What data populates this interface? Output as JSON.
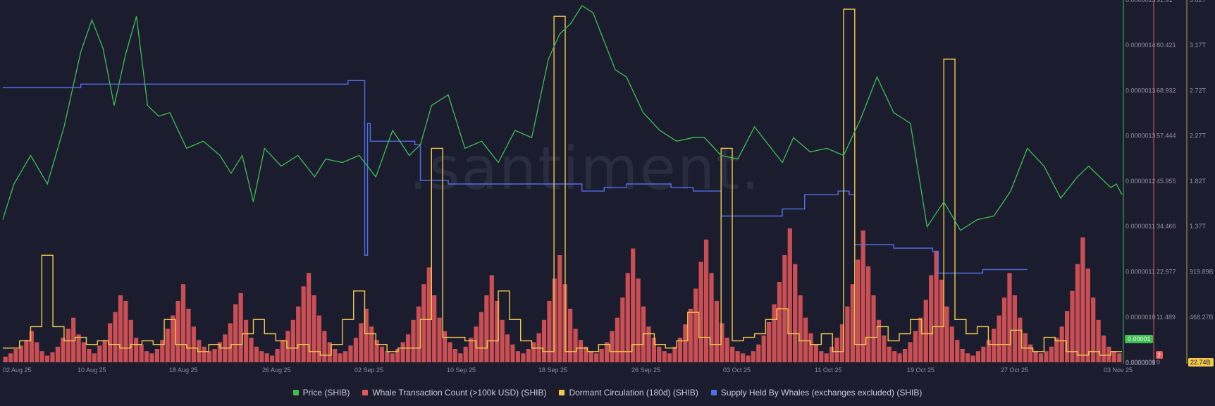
{
  "chart_data": {
    "type": "line",
    "watermark": ".santiment.",
    "x_ticks": [
      "02 Aug 25",
      "10 Aug 25",
      "18 Aug 25",
      "26 Aug 25",
      "02 Sep 25",
      "10 Sep 25",
      "18 Sep 25",
      "26 Sep 25",
      "03 Oct 25",
      "11 Oct 25",
      "19 Oct 25",
      "27 Oct 25",
      "03 Nov 25"
    ],
    "axes": {
      "price": {
        "ticks": [
          "0.0000014",
          "0.0000013",
          "0.0000013",
          "0.0000012",
          "0.0000011",
          "0.0000011",
          "0.0000010",
          "0.0000009"
        ],
        "top_cut": "0.0000015",
        "color": "#3bbf4f"
      },
      "whale_count": {
        "ticks": [
          "80.421",
          "68.932",
          "57.444",
          "45.955",
          "34.466",
          "22.977",
          "11.489",
          "0"
        ],
        "top_cut": "91.91",
        "color": "#e8585a"
      },
      "supply": {
        "ticks": [
          "3.17T",
          "2.72T",
          "2.27T",
          "1.82T",
          "1.37T",
          "919.89B",
          "468.27B"
        ],
        "top_cut": "3.62T",
        "color": "#c9a23a"
      }
    },
    "badges": {
      "price_current": "0.00001",
      "whale_current": "2",
      "dormant_current": "22.74B"
    },
    "series": [
      {
        "name": "Price (SHIB)",
        "color": "#3bbf4f",
        "unit": "price"
      },
      {
        "name": "Whale Transaction Count (>100k USD) (SHIB)",
        "color": "#e8585a",
        "unit": "count"
      },
      {
        "name": "Dormant Circulation (180d) (SHIB)",
        "color": "#f3c94a",
        "unit": "tokens"
      },
      {
        "name": "Supply Held By Whales (exchanges excluded) (SHIB)",
        "color": "#4f6fe8",
        "unit": "tokens"
      }
    ],
    "price_points": [
      [
        0,
        0.4
      ],
      [
        2,
        0.5
      ],
      [
        5,
        0.58
      ],
      [
        8,
        0.5
      ],
      [
        11,
        0.66
      ],
      [
        14,
        0.87
      ],
      [
        16,
        0.96
      ],
      [
        18,
        0.88
      ],
      [
        20,
        0.72
      ],
      [
        22,
        0.86
      ],
      [
        24,
        0.97
      ],
      [
        26,
        0.72
      ],
      [
        28,
        0.69
      ],
      [
        30,
        0.7
      ],
      [
        33,
        0.6
      ],
      [
        36,
        0.62
      ],
      [
        39,
        0.58
      ],
      [
        41,
        0.53
      ],
      [
        43,
        0.58
      ],
      [
        45,
        0.45
      ],
      [
        47,
        0.6
      ],
      [
        50,
        0.55
      ],
      [
        53,
        0.58
      ],
      [
        56,
        0.52
      ],
      [
        58,
        0.57
      ],
      [
        61,
        0.56
      ],
      [
        64,
        0.58
      ],
      [
        67,
        0.52
      ],
      [
        70,
        0.65
      ],
      [
        73,
        0.58
      ],
      [
        75,
        0.61
      ],
      [
        77,
        0.72
      ],
      [
        80,
        0.75
      ],
      [
        83,
        0.6
      ],
      [
        86,
        0.62
      ],
      [
        89,
        0.56
      ],
      [
        92,
        0.65
      ],
      [
        95,
        0.63
      ],
      [
        98,
        0.85
      ],
      [
        100,
        0.92
      ],
      [
        102,
        0.95
      ],
      [
        104,
        1.0
      ],
      [
        106,
        0.98
      ],
      [
        108,
        0.9
      ],
      [
        110,
        0.82
      ],
      [
        112,
        0.8
      ],
      [
        115,
        0.7
      ],
      [
        118,
        0.65
      ],
      [
        121,
        0.62
      ],
      [
        124,
        0.63
      ],
      [
        126,
        0.63
      ],
      [
        129,
        0.58
      ],
      [
        132,
        0.57
      ],
      [
        135,
        0.66
      ],
      [
        138,
        0.6
      ],
      [
        140,
        0.56
      ],
      [
        142,
        0.63
      ],
      [
        145,
        0.59
      ],
      [
        148,
        0.6
      ],
      [
        151,
        0.58
      ],
      [
        154,
        0.68
      ],
      [
        157,
        0.8
      ],
      [
        160,
        0.7
      ],
      [
        163,
        0.67
      ],
      [
        166,
        0.38
      ],
      [
        169,
        0.45
      ],
      [
        172,
        0.37
      ],
      [
        175,
        0.4
      ],
      [
        178,
        0.41
      ],
      [
        181,
        0.48
      ],
      [
        184,
        0.6
      ],
      [
        187,
        0.55
      ],
      [
        190,
        0.46
      ],
      [
        193,
        0.52
      ],
      [
        195,
        0.55
      ],
      [
        197,
        0.52
      ],
      [
        199,
        0.49
      ],
      [
        200,
        0.5
      ],
      [
        201,
        0.47
      ]
    ],
    "dormant_points": [
      [
        0,
        0.04
      ],
      [
        3,
        0.06
      ],
      [
        5,
        0.1
      ],
      [
        7,
        0.3
      ],
      [
        9,
        0.1
      ],
      [
        11,
        0.06
      ],
      [
        13,
        0.07
      ],
      [
        15,
        0.05
      ],
      [
        17,
        0.06
      ],
      [
        19,
        0.05
      ],
      [
        21,
        0.04
      ],
      [
        23,
        0.05
      ],
      [
        25,
        0.06
      ],
      [
        27,
        0.05
      ],
      [
        29,
        0.12
      ],
      [
        31,
        0.05
      ],
      [
        33,
        0.04
      ],
      [
        35,
        0.03
      ],
      [
        37,
        0.05
      ],
      [
        39,
        0.04
      ],
      [
        41,
        0.05
      ],
      [
        43,
        0.08
      ],
      [
        45,
        0.12
      ],
      [
        47,
        0.08
      ],
      [
        49,
        0.06
      ],
      [
        51,
        0.04
      ],
      [
        53,
        0.05
      ],
      [
        55,
        0.03
      ],
      [
        57,
        0.02
      ],
      [
        59,
        0.05
      ],
      [
        61,
        0.12
      ],
      [
        63,
        0.2
      ],
      [
        65,
        0.08
      ],
      [
        67,
        0.05
      ],
      [
        69,
        0.03
      ],
      [
        71,
        0.04
      ],
      [
        73,
        0.04
      ],
      [
        75,
        0.12
      ],
      [
        77,
        0.6
      ],
      [
        79,
        0.07
      ],
      [
        81,
        0.07
      ],
      [
        83,
        0.06
      ],
      [
        85,
        0.04
      ],
      [
        87,
        0.06
      ],
      [
        89,
        0.2
      ],
      [
        91,
        0.12
      ],
      [
        93,
        0.06
      ],
      [
        95,
        0.04
      ],
      [
        97,
        0.03
      ],
      [
        99,
        0.97
      ],
      [
        101,
        0.03
      ],
      [
        103,
        0.04
      ],
      [
        105,
        0.03
      ],
      [
        107,
        0.05
      ],
      [
        109,
        0.03
      ],
      [
        111,
        0.03
      ],
      [
        113,
        0.05
      ],
      [
        115,
        0.08
      ],
      [
        117,
        0.05
      ],
      [
        119,
        0.04
      ],
      [
        121,
        0.06
      ],
      [
        123,
        0.14
      ],
      [
        125,
        0.07
      ],
      [
        127,
        0.05
      ],
      [
        129,
        0.6
      ],
      [
        131,
        0.06
      ],
      [
        133,
        0.07
      ],
      [
        135,
        0.08
      ],
      [
        137,
        0.12
      ],
      [
        139,
        0.15
      ],
      [
        141,
        0.08
      ],
      [
        143,
        0.06
      ],
      [
        145,
        0.05
      ],
      [
        147,
        0.08
      ],
      [
        149,
        0.03
      ],
      [
        151,
        0.99
      ],
      [
        153,
        0.05
      ],
      [
        155,
        0.07
      ],
      [
        157,
        0.1
      ],
      [
        159,
        0.06
      ],
      [
        161,
        0.08
      ],
      [
        163,
        0.12
      ],
      [
        165,
        0.08
      ],
      [
        167,
        0.1
      ],
      [
        169,
        0.85
      ],
      [
        171,
        0.12
      ],
      [
        173,
        0.08
      ],
      [
        175,
        0.1
      ],
      [
        177,
        0.05
      ],
      [
        179,
        0.05
      ],
      [
        181,
        0.09
      ],
      [
        183,
        0.04
      ],
      [
        185,
        0.03
      ],
      [
        187,
        0.07
      ],
      [
        189,
        0.06
      ],
      [
        191,
        0.03
      ],
      [
        193,
        0.02
      ],
      [
        195,
        0.03
      ],
      [
        197,
        0.02
      ],
      [
        199,
        0.03
      ],
      [
        201,
        0.03
      ]
    ],
    "whale_supply_points": [
      [
        0,
        0.77
      ],
      [
        4,
        0.77
      ],
      [
        8,
        0.77
      ],
      [
        12,
        0.77
      ],
      [
        14,
        0.78
      ],
      [
        18,
        0.78
      ],
      [
        22,
        0.78
      ],
      [
        26,
        0.78
      ],
      [
        30,
        0.78
      ],
      [
        34,
        0.78
      ],
      [
        38,
        0.78
      ],
      [
        42,
        0.78
      ],
      [
        46,
        0.78
      ],
      [
        50,
        0.78
      ],
      [
        54,
        0.78
      ],
      [
        58,
        0.78
      ],
      [
        62,
        0.79
      ],
      [
        64,
        0.79
      ],
      [
        65,
        0.3
      ],
      [
        65.5,
        0.67
      ],
      [
        66,
        0.62
      ],
      [
        70,
        0.62
      ],
      [
        74,
        0.61
      ],
      [
        75,
        0.51
      ],
      [
        80,
        0.5
      ],
      [
        84,
        0.5
      ],
      [
        88,
        0.5
      ],
      [
        92,
        0.5
      ],
      [
        96,
        0.5
      ],
      [
        100,
        0.5
      ],
      [
        104,
        0.48
      ],
      [
        108,
        0.49
      ],
      [
        112,
        0.5
      ],
      [
        116,
        0.5
      ],
      [
        120,
        0.49
      ],
      [
        124,
        0.48
      ],
      [
        128,
        0.48
      ],
      [
        129,
        0.41
      ],
      [
        132,
        0.41
      ],
      [
        136,
        0.41
      ],
      [
        140,
        0.43
      ],
      [
        144,
        0.47
      ],
      [
        146,
        0.47
      ],
      [
        150,
        0.48
      ],
      [
        152,
        0.47
      ],
      [
        153,
        0.33
      ],
      [
        156,
        0.33
      ],
      [
        160,
        0.32
      ],
      [
        164,
        0.32
      ],
      [
        167,
        0.31
      ],
      [
        168,
        0.25
      ],
      [
        172,
        0.25
      ],
      [
        176,
        0.26
      ],
      [
        180,
        0.26
      ],
      [
        184,
        0.26
      ]
    ],
    "whale_count_bars": [
      5,
      8,
      12,
      15,
      20,
      28,
      18,
      10,
      6,
      9,
      14,
      22,
      30,
      40,
      25,
      18,
      12,
      8,
      15,
      20,
      35,
      45,
      60,
      55,
      38,
      22,
      16,
      10,
      8,
      12,
      20,
      30,
      42,
      55,
      70,
      48,
      32,
      20,
      14,
      10,
      12,
      18,
      25,
      35,
      52,
      62,
      38,
      22,
      14,
      10,
      8,
      6,
      12,
      20,
      28,
      38,
      50,
      68,
      80,
      60,
      42,
      28,
      18,
      12,
      8,
      10,
      15,
      22,
      35,
      48,
      32,
      20,
      14,
      10,
      8,
      12,
      18,
      25,
      38,
      50,
      70,
      85,
      60,
      40,
      28,
      18,
      12,
      8,
      14,
      22,
      32,
      45,
      60,
      78,
      55,
      38,
      25,
      16,
      10,
      8,
      12,
      18,
      26,
      38,
      55,
      75,
      96,
      70,
      48,
      30,
      20,
      14,
      10,
      8,
      12,
      18,
      28,
      40,
      58,
      80,
      102,
      75,
      50,
      32,
      22,
      14,
      10,
      8,
      14,
      22,
      34,
      48,
      66,
      90,
      110,
      80,
      55,
      35,
      22,
      14,
      10,
      8,
      6,
      10,
      16,
      24,
      36,
      52,
      72,
      96,
      120,
      88,
      60,
      40,
      26,
      16,
      10,
      8,
      14,
      22,
      34,
      50,
      70,
      92,
      118,
      86,
      60,
      38,
      24,
      14,
      10,
      8,
      12,
      18,
      28,
      40,
      56,
      78,
      100,
      74,
      50,
      32,
      20,
      12,
      8,
      6,
      10,
      14,
      20,
      30,
      42,
      58,
      80,
      60,
      40,
      26,
      16,
      10,
      8,
      10,
      14,
      22,
      32,
      46,
      64,
      88,
      112,
      84,
      58,
      38,
      24,
      14,
      10,
      8
    ]
  },
  "legend": [
    {
      "label": "Price (SHIB)",
      "color": "#3bbf4f"
    },
    {
      "label": "Whale Transaction Count (>100k USD) (SHIB)",
      "color": "#e8585a"
    },
    {
      "label": "Dormant Circulation (180d) (SHIB)",
      "color": "#f3c94a"
    },
    {
      "label": "Supply Held By Whales (exchanges excluded) (SHIB)",
      "color": "#4f6fe8"
    }
  ]
}
